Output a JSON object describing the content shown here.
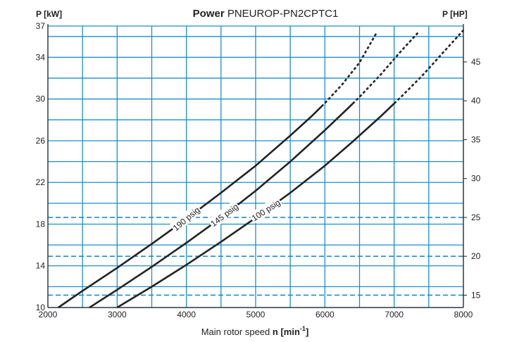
{
  "chart_data": {
    "type": "line",
    "title_bold": "Power",
    "title_rest": "PNEUROP-PN2CPTC1",
    "ylabel_left": "P [kW]",
    "ylabel_right": "P [HP]",
    "xlabel": "Main rotor speed n [min-1]",
    "xlabel_main": "Main rotor speed ",
    "xlabel_sym": "n",
    "xlabel_unit": "[min",
    "xlabel_sup": "-1",
    "xlabel_close": "]",
    "xlim": [
      2000,
      8000
    ],
    "ylim_left": [
      10,
      37
    ],
    "x_ticks": [
      2000,
      3000,
      4000,
      5000,
      6000,
      7000,
      8000
    ],
    "y_ticks_left": [
      10,
      14,
      18,
      22,
      26,
      30,
      34,
      37
    ],
    "y_ticks_right": [
      15,
      20,
      25,
      30,
      35,
      40,
      45
    ],
    "hp_per_kw": 1.341,
    "grid": true,
    "colors": {
      "grid": "#1a8fc9",
      "curve": "#222222",
      "axis": "#222222"
    },
    "series": [
      {
        "name": "190 psig",
        "x": [
          2150,
          2500,
          3000,
          3500,
          4000,
          4500,
          5000,
          5500,
          5800,
          6000,
          6250,
          6500,
          6750
        ],
        "y": [
          10,
          11.6,
          13.8,
          16.1,
          18.5,
          21.0,
          23.6,
          26.5,
          28.3,
          29.6,
          31.4,
          33.5,
          36.4
        ],
        "dashed_from_x": 5950
      },
      {
        "name": "145 psig",
        "x": [
          2600,
          3000,
          3500,
          4000,
          4500,
          5000,
          5500,
          6000,
          6300,
          6500,
          6800,
          7100,
          7350
        ],
        "y": [
          10,
          11.7,
          13.9,
          16.2,
          18.6,
          21.2,
          24.0,
          27.0,
          28.9,
          30.2,
          32.3,
          34.6,
          36.4
        ],
        "dashed_from_x": 6400
      },
      {
        "name": "100 psig",
        "x": [
          3000,
          3500,
          4000,
          4500,
          5000,
          5500,
          6000,
          6400,
          6800,
          7100,
          7400,
          7700,
          8000
        ],
        "y": [
          10,
          12.0,
          14.1,
          16.3,
          18.6,
          21.0,
          23.6,
          25.9,
          28.3,
          30.2,
          32.2,
          34.4,
          36.6
        ],
        "dashed_from_x": 7000
      }
    ],
    "dashed_hlines_hp": [
      15,
      20,
      25
    ],
    "curve_label_x": [
      4000,
      4550,
      5150
    ],
    "curve_label_rotation_deg": [
      -40,
      -37,
      -33
    ]
  }
}
